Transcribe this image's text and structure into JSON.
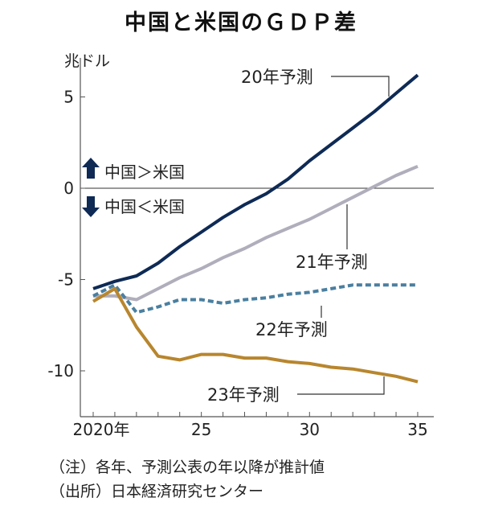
{
  "chart_data": {
    "type": "line",
    "title": "中国と米国のＧＤＰ差",
    "ylabel": "兆ドル",
    "x": [
      2020,
      2021,
      2022,
      2023,
      2024,
      2025,
      2026,
      2027,
      2028,
      2029,
      2030,
      2031,
      2032,
      2033,
      2034,
      2035
    ],
    "xticks": [
      2020,
      2025,
      2030,
      2035
    ],
    "xtick_labels": [
      "2020年",
      "25",
      "30",
      "35"
    ],
    "yticks": [
      5,
      0,
      -5,
      -10
    ],
    "ytick_labels": [
      "5",
      "0",
      "-5",
      "-10"
    ],
    "xlim": [
      2019.4,
      2035.5
    ],
    "ylim": [
      -12.5,
      8
    ],
    "grid": false,
    "annotations": {
      "up": "中国＞米国",
      "down": "中国＜米国"
    },
    "series": [
      {
        "name": "20年予測",
        "color": "#0e2a55",
        "dashed": false,
        "values": [
          -5.5,
          -5.1,
          -4.8,
          -4.1,
          -3.2,
          -2.4,
          -1.6,
          -0.9,
          -0.3,
          0.5,
          1.5,
          2.4,
          3.3,
          4.2,
          5.2,
          6.2
        ]
      },
      {
        "name": "21年予測",
        "color": "#b0aebb",
        "dashed": false,
        "values": [
          -5.9,
          -5.9,
          -6.1,
          -5.5,
          -4.9,
          -4.4,
          -3.8,
          -3.3,
          -2.7,
          -2.2,
          -1.7,
          -1.1,
          -0.5,
          0.1,
          0.7,
          1.2
        ]
      },
      {
        "name": "22年予測",
        "color": "#4a7fa0",
        "dashed": true,
        "values": [
          -5.9,
          -5.3,
          -6.8,
          -6.5,
          -6.1,
          -6.1,
          -6.3,
          -6.1,
          -6.0,
          -5.8,
          -5.7,
          -5.5,
          -5.3,
          -5.3,
          -5.3,
          -5.3
        ]
      },
      {
        "name": "23年予測",
        "color": "#b8862e",
        "dashed": false,
        "values": [
          -6.2,
          -5.5,
          -7.6,
          -9.2,
          -9.4,
          -9.1,
          -9.1,
          -9.3,
          -9.3,
          -9.5,
          -9.6,
          -9.8,
          -9.9,
          -10.1,
          -10.3,
          -10.6
        ]
      }
    ]
  },
  "notes": [
    "（注）各年、予測公表の年以降が推計値",
    "（出所）日本経済研究センター"
  ]
}
